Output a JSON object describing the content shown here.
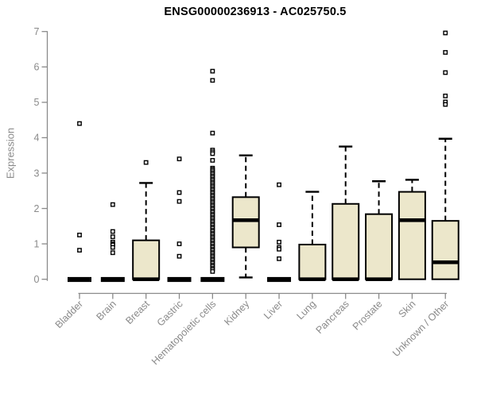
{
  "page": {
    "background": "#ffffff"
  },
  "colors": {
    "box_fill": "#ece7cb",
    "box_stroke": "#000000",
    "axis": "#8a8a8a",
    "tick_text": "#8a8a8a",
    "title_text": "#000000"
  },
  "chart_data": {
    "type": "boxplot",
    "title": "ENSG00000236913 - AC025750.5",
    "xlabel": "",
    "ylabel": "Expression",
    "ylim": [
      0,
      7
    ],
    "yticks": [
      0,
      1,
      2,
      3,
      4,
      5,
      6,
      7
    ],
    "grid": false,
    "legend": "none",
    "categories": [
      "Bladder",
      "Brain",
      "Breast",
      "Gastric",
      "Hematopoietic cells",
      "Kidney",
      "Liver",
      "Lung",
      "Pancreas",
      "Prostate",
      "Skin",
      "Unknown / Other"
    ],
    "series": [
      {
        "name": "Bladder",
        "whisker_low": 0,
        "q1": 0,
        "median": 0,
        "q3": 0,
        "whisker_high": 0,
        "outliers": [
          4.4,
          1.25,
          0.82
        ]
      },
      {
        "name": "Brain",
        "whisker_low": 0,
        "q1": 0,
        "median": 0,
        "q3": 0,
        "whisker_high": 0,
        "outliers": [
          2.11,
          1.35,
          1.2,
          1.05,
          1.0,
          0.97,
          0.9,
          0.75
        ]
      },
      {
        "name": "Breast",
        "whisker_low": 0,
        "q1": 0,
        "median": 0,
        "q3": 1.1,
        "whisker_high": 2.72,
        "outliers": [
          3.3
        ]
      },
      {
        "name": "Gastric",
        "whisker_low": 0,
        "q1": 0,
        "median": 0,
        "q3": 0,
        "whisker_high": 0,
        "outliers": [
          3.4,
          2.45,
          2.2,
          1.0,
          0.65
        ]
      },
      {
        "name": "Hematopoietic cells",
        "whisker_low": 0,
        "q1": 0,
        "median": 0,
        "q3": 0,
        "whisker_high": 0,
        "outliers": [
          5.88,
          5.62,
          4.13,
          3.65,
          3.6,
          3.55,
          3.36,
          3.14,
          3.1,
          3.06,
          3.01,
          2.97,
          2.92,
          2.88,
          2.83,
          2.79,
          2.74,
          2.7,
          2.65,
          2.61,
          2.56,
          2.52,
          2.47,
          2.43,
          2.38,
          2.34,
          2.29,
          2.25,
          2.2,
          2.16,
          2.11,
          2.07,
          2.02,
          1.98,
          1.93,
          1.89,
          1.84,
          1.8,
          1.75,
          1.71,
          1.66,
          1.62,
          1.57,
          1.53,
          1.48,
          1.44,
          1.39,
          1.35,
          1.3,
          1.26,
          1.21,
          1.17,
          1.12,
          1.08,
          1.03,
          0.99,
          0.94,
          0.9,
          0.85,
          0.81,
          0.76,
          0.72,
          0.67,
          0.63,
          0.58,
          0.54,
          0.49,
          0.45,
          0.4,
          0.36,
          0.31,
          0.27,
          0.22
        ]
      },
      {
        "name": "Kidney",
        "whisker_low": 0.05,
        "q1": 0.9,
        "median": 1.67,
        "q3": 2.32,
        "whisker_high": 3.5,
        "outliers": []
      },
      {
        "name": "Liver",
        "whisker_low": 0,
        "q1": 0,
        "median": 0,
        "q3": 0,
        "whisker_high": 0,
        "outliers": [
          2.67,
          1.54,
          1.05,
          0.9,
          0.85,
          0.58
        ]
      },
      {
        "name": "Lung",
        "whisker_low": 0,
        "q1": 0,
        "median": 0,
        "q3": 0.98,
        "whisker_high": 2.47,
        "outliers": []
      },
      {
        "name": "Pancreas",
        "whisker_low": 0,
        "q1": 0,
        "median": 0,
        "q3": 2.13,
        "whisker_high": 3.75,
        "outliers": []
      },
      {
        "name": "Prostate",
        "whisker_low": 0,
        "q1": 0,
        "median": 0,
        "q3": 1.84,
        "whisker_high": 2.77,
        "outliers": []
      },
      {
        "name": "Skin",
        "whisker_low": 0,
        "q1": 0,
        "median": 1.67,
        "q3": 2.47,
        "whisker_high": 2.81,
        "outliers": []
      },
      {
        "name": "Unknown / Other",
        "whisker_low": 0,
        "q1": 0,
        "median": 0.48,
        "q3": 1.65,
        "whisker_high": 3.97,
        "outliers": [
          6.96,
          6.41,
          5.84,
          5.18,
          5.01,
          4.94
        ]
      }
    ]
  }
}
